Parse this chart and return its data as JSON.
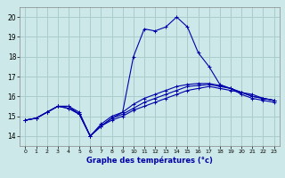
{
  "xlabel": "Graphe des températures (°c)",
  "bg_color": "#cce8e8",
  "grid_color": "#aacccc",
  "line_color": "#0000aa",
  "x_ticks": [
    0,
    1,
    2,
    3,
    4,
    5,
    6,
    7,
    8,
    9,
    10,
    11,
    12,
    13,
    14,
    15,
    16,
    17,
    18,
    19,
    20,
    21,
    22,
    23
  ],
  "ylim": [
    13.5,
    20.5
  ],
  "xlim": [
    -0.5,
    23.5
  ],
  "yticks": [
    14,
    15,
    16,
    17,
    18,
    19,
    20
  ],
  "series": [
    {
      "x": [
        0,
        1,
        2,
        3,
        4,
        5,
        6,
        7,
        8,
        9,
        10,
        11,
        12,
        13,
        14,
        15,
        16,
        17,
        18,
        19,
        20,
        21,
        22,
        23
      ],
      "y": [
        14.8,
        14.9,
        15.2,
        15.5,
        15.4,
        15.1,
        14.0,
        14.5,
        14.8,
        15.0,
        15.3,
        15.5,
        15.7,
        15.9,
        16.1,
        16.3,
        16.4,
        16.5,
        16.4,
        16.3,
        16.2,
        16.1,
        15.9,
        15.8
      ]
    },
    {
      "x": [
        0,
        1,
        2,
        3,
        4,
        5,
        6,
        7,
        8,
        9,
        10,
        11,
        12,
        13,
        14,
        15,
        16,
        17,
        18,
        19,
        20,
        21,
        22,
        23
      ],
      "y": [
        14.8,
        14.9,
        15.2,
        15.5,
        15.4,
        15.1,
        14.0,
        14.5,
        14.9,
        15.1,
        15.4,
        15.7,
        15.9,
        16.1,
        16.3,
        16.5,
        16.55,
        16.6,
        16.5,
        16.4,
        16.2,
        16.0,
        15.9,
        15.8
      ]
    },
    {
      "x": [
        0,
        1,
        2,
        3,
        4,
        5,
        6,
        7,
        8,
        9,
        10,
        11,
        12,
        13,
        14,
        15,
        16,
        17,
        18,
        19,
        20,
        21,
        22,
        23
      ],
      "y": [
        14.8,
        14.9,
        15.2,
        15.5,
        15.5,
        15.1,
        14.0,
        14.5,
        14.9,
        15.2,
        15.6,
        15.9,
        16.1,
        16.3,
        16.5,
        16.6,
        16.65,
        16.65,
        16.55,
        16.4,
        16.2,
        16.0,
        15.9,
        15.8
      ]
    },
    {
      "x": [
        0,
        1,
        2,
        3,
        4,
        5,
        6,
        7,
        8,
        9,
        10,
        11,
        12,
        13,
        14,
        15,
        16,
        17,
        18,
        19,
        20,
        21,
        22,
        23
      ],
      "y": [
        14.8,
        14.9,
        15.2,
        15.5,
        15.5,
        15.2,
        14.0,
        14.6,
        15.0,
        15.2,
        18.0,
        19.4,
        19.3,
        19.5,
        20.0,
        19.5,
        18.2,
        17.5,
        16.6,
        16.4,
        16.1,
        15.9,
        15.8,
        15.7
      ]
    }
  ]
}
